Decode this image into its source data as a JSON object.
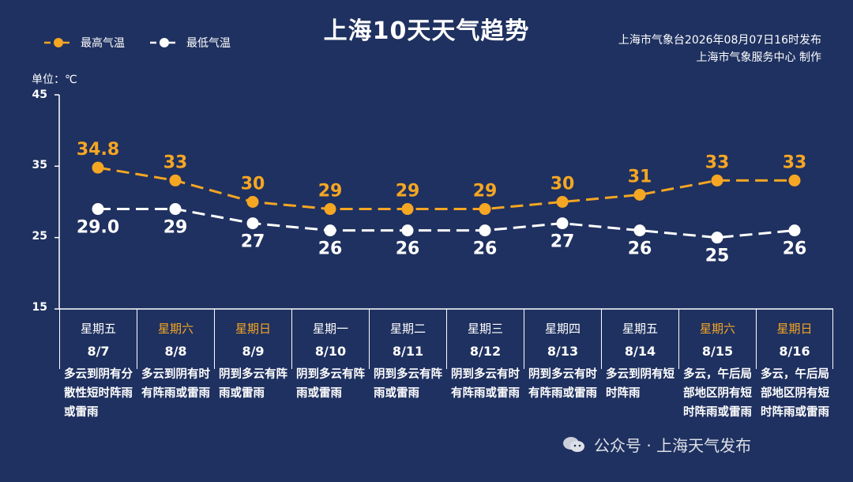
{
  "title": "上海10天天气趋势",
  "issuer": {
    "line1": "上海市气象台2026年08月07日16时发布",
    "line2": "上海市气象服务中心 制作"
  },
  "colors": {
    "background": "#1f3160",
    "high": "#f5a623",
    "low": "#ffffff",
    "weekend": "#f5a623"
  },
  "chart_data": {
    "type": "line",
    "unit_label": "单位：℃",
    "ylim": [
      15,
      45
    ],
    "yticks": [
      "45",
      "35",
      "25",
      "15"
    ],
    "categories": [
      "8/7",
      "8/8",
      "8/9",
      "8/10",
      "8/11",
      "8/12",
      "8/13",
      "8/14",
      "8/15",
      "8/16"
    ],
    "series": [
      {
        "name": "最高气温",
        "values": [
          34.8,
          33,
          30,
          29,
          29,
          29,
          30,
          31,
          33,
          33
        ],
        "labels": [
          "34.8",
          "33",
          "30",
          "29",
          "29",
          "29",
          "30",
          "31",
          "33",
          "33"
        ]
      },
      {
        "name": "最低气温",
        "values": [
          29.0,
          29,
          27,
          26,
          26,
          26,
          27,
          26,
          25,
          26
        ],
        "labels": [
          "29.0",
          "29",
          "27",
          "26",
          "26",
          "26",
          "27",
          "26",
          "25",
          "26"
        ]
      }
    ]
  },
  "days": [
    {
      "weekday": "星期五",
      "date": "8/7",
      "weekend": false,
      "desc": "多云到阴有分散性短时阵雨或雷雨"
    },
    {
      "weekday": "星期六",
      "date": "8/8",
      "weekend": true,
      "desc": "多云到阴有时有阵雨或雷雨"
    },
    {
      "weekday": "星期日",
      "date": "8/9",
      "weekend": true,
      "desc": "阴到多云有阵雨或雷雨"
    },
    {
      "weekday": "星期一",
      "date": "8/10",
      "weekend": false,
      "desc": "阴到多云有阵雨或雷雨"
    },
    {
      "weekday": "星期二",
      "date": "8/11",
      "weekend": false,
      "desc": "阴到多云有阵雨或雷雨"
    },
    {
      "weekday": "星期三",
      "date": "8/12",
      "weekend": false,
      "desc": "阴到多云有时有阵雨或雷雨"
    },
    {
      "weekday": "星期四",
      "date": "8/13",
      "weekend": false,
      "desc": "阴到多云有时有阵雨或雷雨"
    },
    {
      "weekday": "星期五",
      "date": "8/14",
      "weekend": false,
      "desc": "多云到阴有短时阵雨"
    },
    {
      "weekday": "星期六",
      "date": "8/15",
      "weekend": true,
      "desc": "多云，午后局部地区阴有短时阵雨或雷雨"
    },
    {
      "weekday": "星期日",
      "date": "8/16",
      "weekend": true,
      "desc": "多云，午后局部地区阴有短时阵雨或雷雨"
    }
  ],
  "watermark": {
    "text": "公众号 · 上海天气发布",
    "icon": "wechat-icon"
  }
}
